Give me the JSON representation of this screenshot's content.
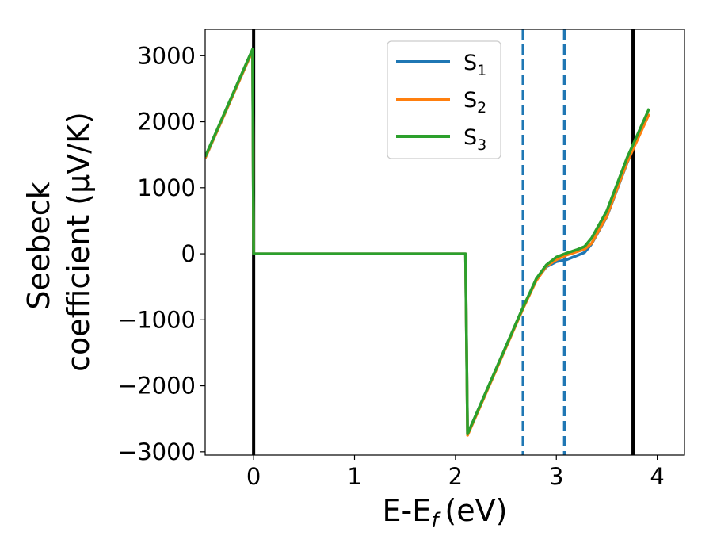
{
  "chart_data": {
    "type": "line",
    "xlabel": "E-E",
    "xlabel_sub": "f",
    "xlabel_unit": "(eV)",
    "ylabel_line1": "Seebeck",
    "ylabel_line2": "coefficient  (μV/K)",
    "xlim": [
      -0.48,
      4.27
    ],
    "ylim": [
      -3050,
      3400
    ],
    "xticks": [
      0,
      1,
      2,
      3,
      4
    ],
    "xtick_labels": [
      "0",
      "1",
      "2",
      "3",
      "4"
    ],
    "yticks": [
      -3000,
      -2000,
      -1000,
      0,
      1000,
      2000,
      3000
    ],
    "ytick_labels": [
      "−3000",
      "−2000",
      "−1000",
      "0",
      "1000",
      "2000",
      "3000"
    ],
    "vlines": [
      {
        "x": 0.0,
        "style": "solid",
        "color": "#000000"
      },
      {
        "x": 3.76,
        "style": "solid",
        "color": "#000000"
      },
      {
        "x": 2.67,
        "style": "dashed",
        "color": "#1f77b4"
      },
      {
        "x": 3.08,
        "style": "dashed",
        "color": "#1f77b4"
      }
    ],
    "legend_position": "top-center",
    "series": [
      {
        "name": "S",
        "sub": "1",
        "color": "#1f77b4",
        "x": [
          -0.48,
          -0.01,
          0.0,
          2.09,
          2.1,
          2.12,
          2.67,
          2.75,
          2.8,
          2.9,
          3.0,
          3.1,
          3.2,
          3.28,
          3.35,
          3.5,
          3.7,
          3.9
        ],
        "y": [
          1450,
          3080,
          0,
          0,
          0,
          -2730,
          -820,
          -560,
          -400,
          -200,
          -120,
          -90,
          -30,
          20,
          150,
          560,
          1370,
          2100
        ]
      },
      {
        "name": "S",
        "sub": "2",
        "color": "#ff7f0e",
        "x": [
          -0.48,
          -0.01,
          0.0,
          2.09,
          2.1,
          2.12,
          2.67,
          2.75,
          2.8,
          2.9,
          3.0,
          3.1,
          3.2,
          3.28,
          3.35,
          3.5,
          3.7,
          3.92
        ],
        "y": [
          1450,
          3080,
          0,
          0,
          0,
          -2750,
          -830,
          -570,
          -410,
          -190,
          -90,
          -20,
          30,
          70,
          160,
          570,
          1380,
          2120
        ]
      },
      {
        "name": "S",
        "sub": "3",
        "color": "#2ca02c",
        "x": [
          -0.48,
          -0.01,
          0.0,
          2.09,
          2.1,
          2.12,
          2.67,
          2.75,
          2.8,
          2.9,
          3.0,
          3.1,
          3.2,
          3.28,
          3.35,
          3.5,
          3.7,
          3.92
        ],
        "y": [
          1470,
          3100,
          0,
          0,
          0,
          -2730,
          -810,
          -550,
          -380,
          -170,
          -50,
          10,
          60,
          110,
          240,
          650,
          1450,
          2200
        ]
      }
    ]
  }
}
